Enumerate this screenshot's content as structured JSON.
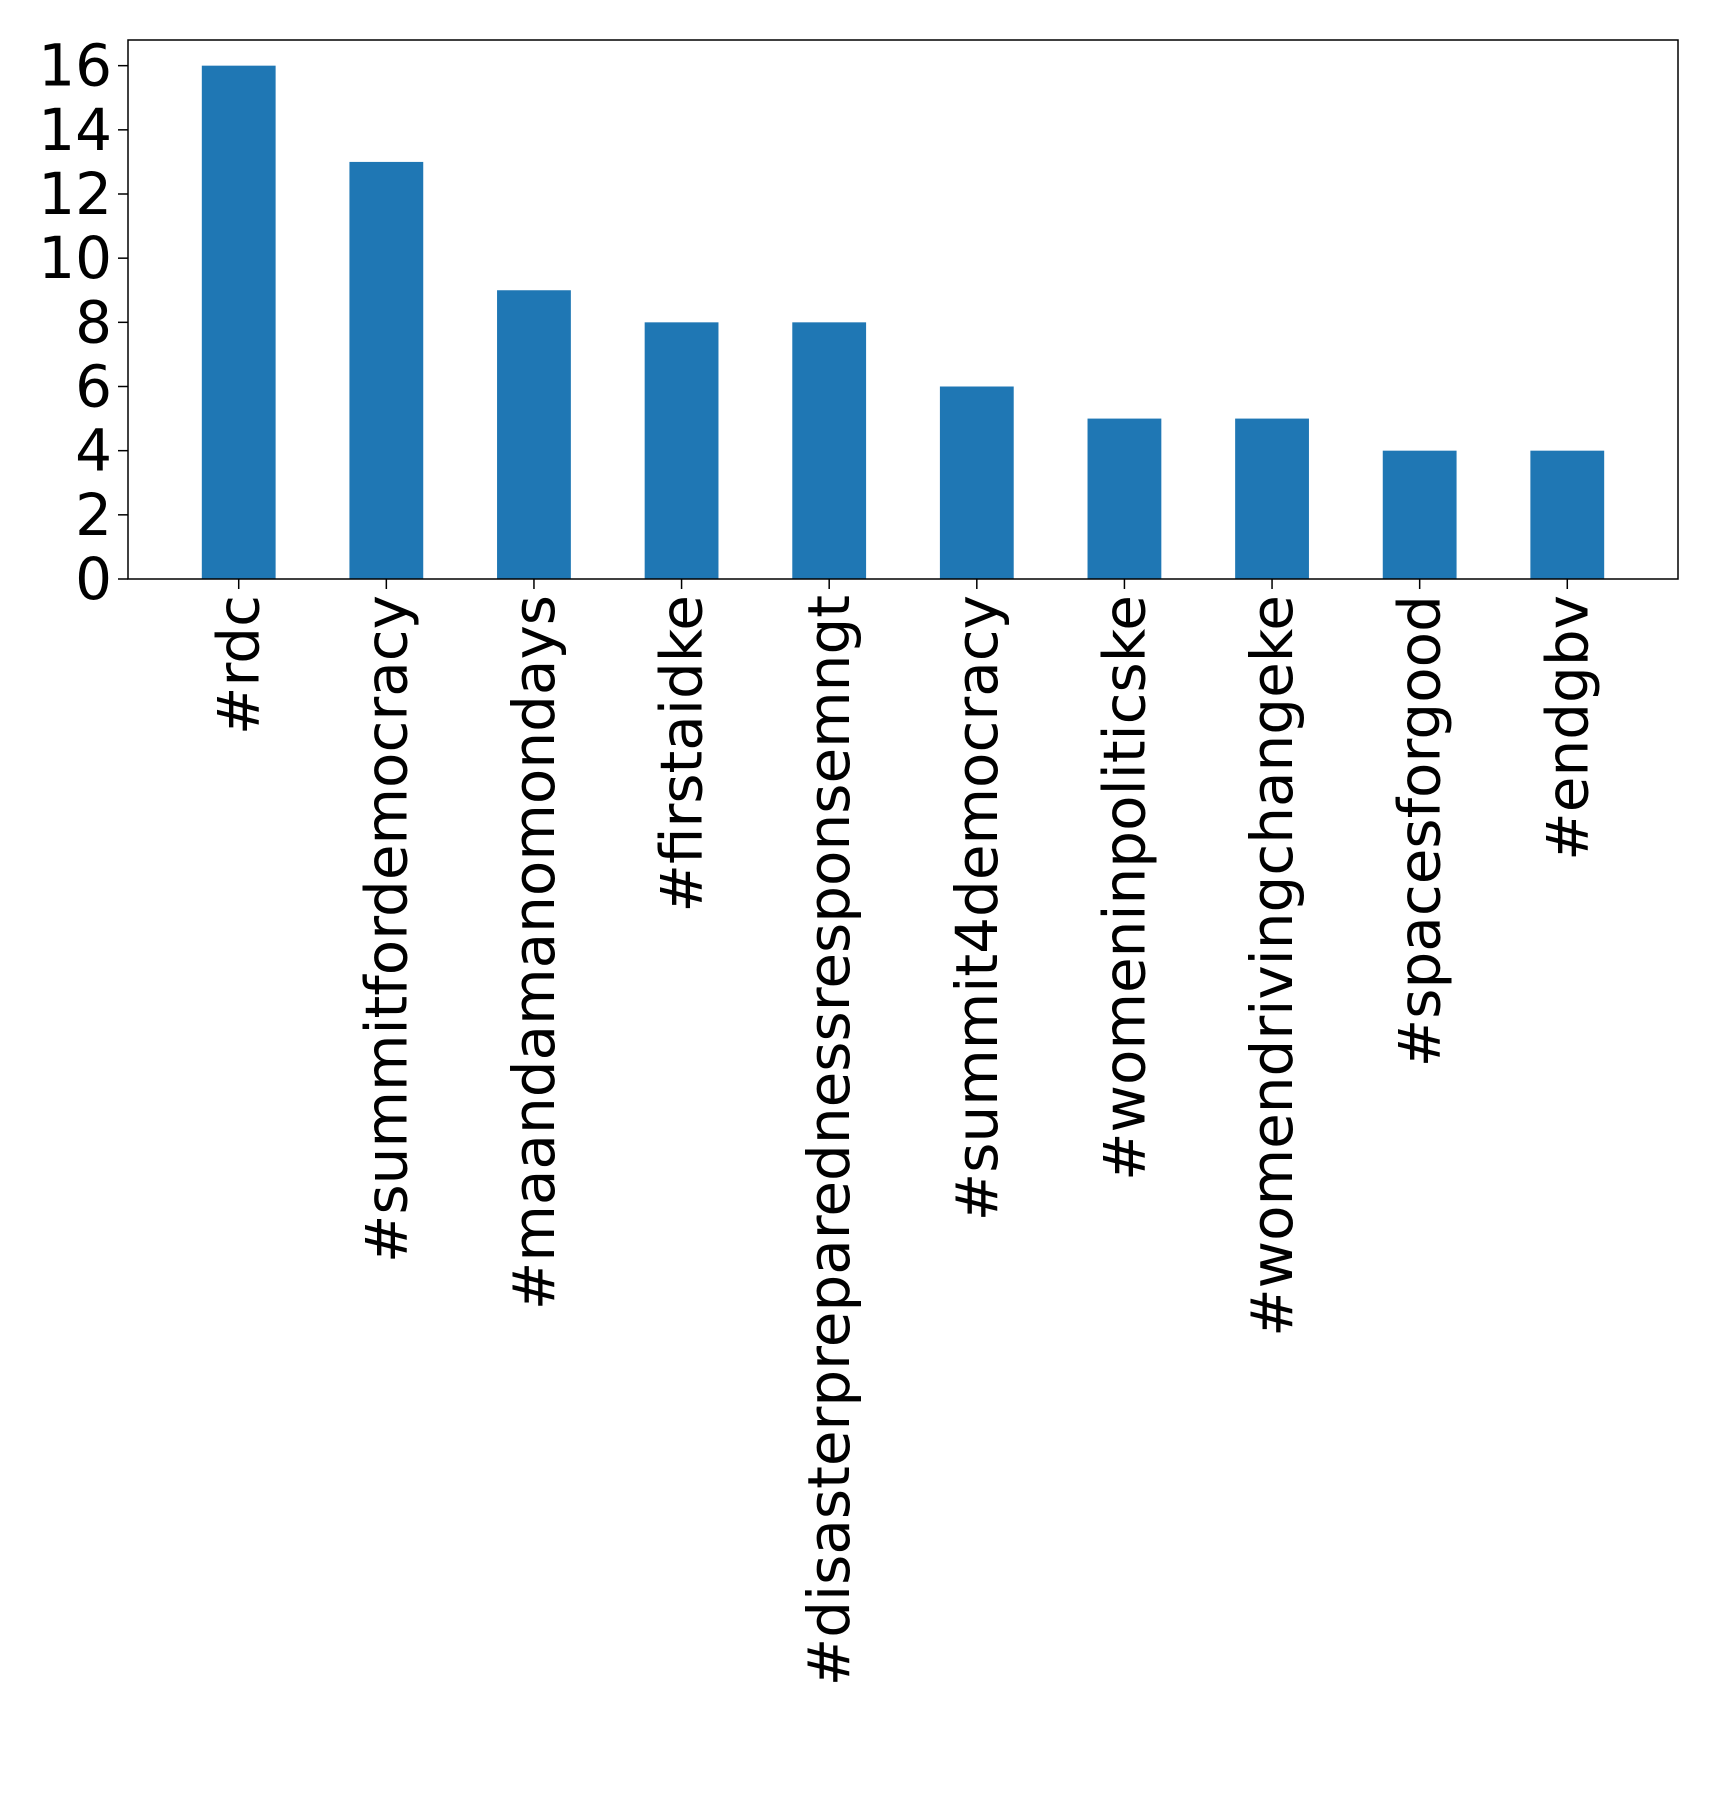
{
  "colors": {
    "bar": "#1f77b4",
    "axis": "#000000",
    "background": "#ffffff"
  },
  "chart_data": {
    "type": "bar",
    "title": "",
    "xlabel": "",
    "ylabel": "",
    "categories": [
      "#rdc",
      "#summitfordemocracy",
      "#maandamanomondays",
      "#firstaidke",
      "#disasterpreparednessresponsemngt",
      "#summit4democracy",
      "#womeninpoliticske",
      "#womendrivingchangeke",
      "#spacesforgood",
      "#endgbv"
    ],
    "values": [
      16,
      13,
      9,
      8,
      8,
      6,
      5,
      5,
      4,
      4
    ],
    "ylim": [
      0,
      16.8
    ],
    "yticks": [
      0,
      2,
      4,
      6,
      8,
      10,
      12,
      14,
      16
    ],
    "grid": false,
    "legend": "none"
  }
}
